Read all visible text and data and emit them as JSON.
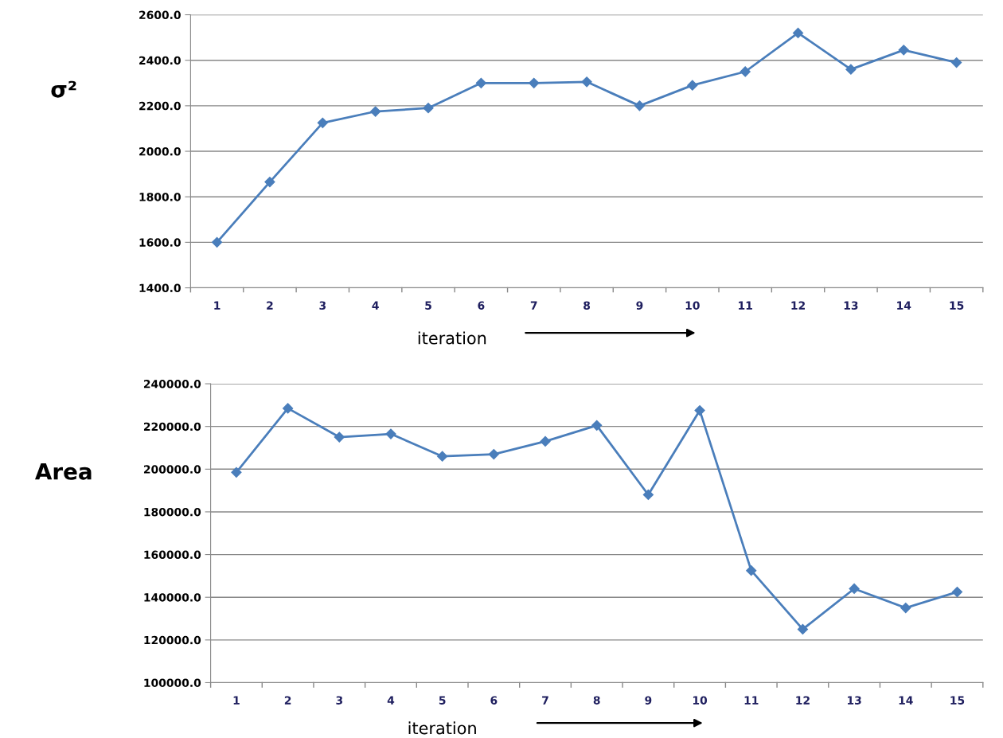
{
  "chart_data": [
    {
      "type": "line",
      "ylabel": "σ²",
      "xlabel": "iteration",
      "categories": [
        "1",
        "2",
        "3",
        "4",
        "5",
        "6",
        "7",
        "8",
        "9",
        "10",
        "11",
        "12",
        "13",
        "14",
        "15"
      ],
      "series": [
        {
          "color": "#4a7ebb",
          "values": [
            1600,
            1865,
            2125,
            2175,
            2190,
            2300,
            2300,
            2305,
            2200,
            2290,
            2350,
            2520,
            2360,
            2445,
            2390
          ]
        }
      ],
      "ylim": [
        1400,
        2600
      ],
      "yticks": [
        {
          "value": 1400,
          "label": "1400.0"
        },
        {
          "value": 1600,
          "label": "1600.0"
        },
        {
          "value": 1800,
          "label": "1800.0"
        },
        {
          "value": 2000,
          "label": "2000.0"
        },
        {
          "value": 2200,
          "label": "2200.0"
        },
        {
          "value": 2400,
          "label": "2400.0"
        },
        {
          "value": 2600,
          "label": "2600.0"
        }
      ],
      "grid": "y",
      "legend": false,
      "marker": "diamond",
      "line_style": "solid"
    },
    {
      "type": "line",
      "ylabel": "Area",
      "xlabel": "iteration",
      "categories": [
        "1",
        "2",
        "3",
        "4",
        "5",
        "6",
        "7",
        "8",
        "9",
        "10",
        "11",
        "12",
        "13",
        "14",
        "15"
      ],
      "series": [
        {
          "color": "#4a7ebb",
          "values": [
            198500,
            228500,
            215000,
            216500,
            206000,
            207000,
            213000,
            220500,
            188000,
            227500,
            152500,
            125000,
            144000,
            135000,
            142500
          ]
        }
      ],
      "ylim": [
        100000,
        240000
      ],
      "yticks": [
        {
          "value": 100000,
          "label": "100000.0"
        },
        {
          "value": 120000,
          "label": "120000.0"
        },
        {
          "value": 140000,
          "label": "140000.0"
        },
        {
          "value": 160000,
          "label": "160000.0"
        },
        {
          "value": 180000,
          "label": "180000.0"
        },
        {
          "value": 200000,
          "label": "200000.0"
        },
        {
          "value": 220000,
          "label": "220000.0"
        },
        {
          "value": 240000,
          "label": "240000.0"
        }
      ],
      "grid": "y",
      "legend": false,
      "marker": "diamond",
      "line_style": "solid"
    }
  ]
}
